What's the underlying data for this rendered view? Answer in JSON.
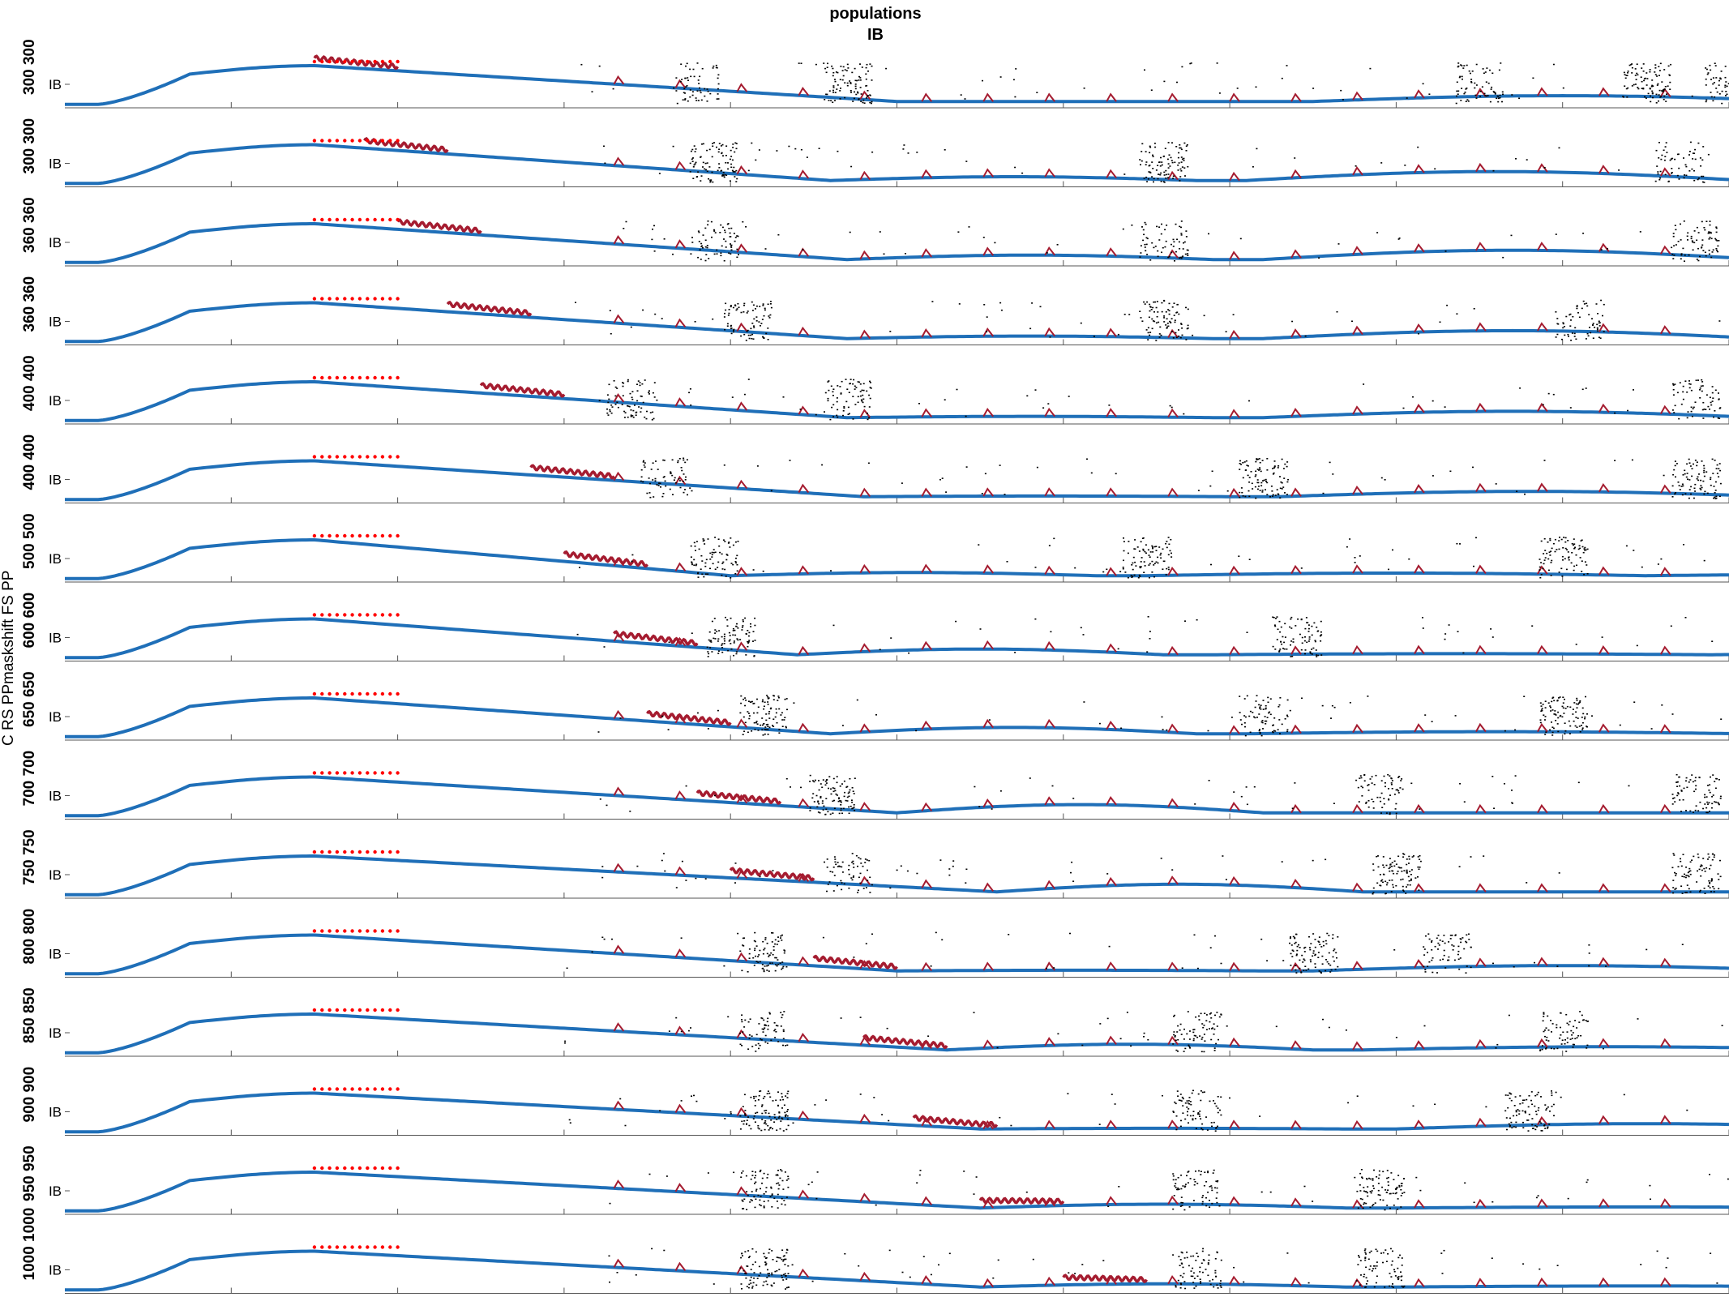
{
  "chart_data": {
    "type": "line",
    "title": "populations",
    "subtitle": "IB",
    "ylabel": "C RS PPmaskshift FS PP",
    "panel_row_label": "IB",
    "panel_tick_labels": [
      "300",
      "300",
      "360",
      "360",
      "400",
      "400",
      "500",
      "600",
      "650",
      "700",
      "750",
      "800",
      "850",
      "900",
      "950",
      "1000"
    ],
    "panels": 16,
    "x_ticks": 10,
    "colors": {
      "envelope": "#1f6fb8",
      "trace": "#a51c30",
      "stimulus_markers": "#ff0000",
      "spikes": "#000000",
      "axes": "#555555"
    },
    "stimulus_window": [
      0.15,
      0.2
    ],
    "shifted_burst_onsets": [
      0.15,
      0.18,
      0.2,
      0.23,
      0.25,
      0.28,
      0.3,
      0.33,
      0.35,
      0.38,
      0.4,
      0.45,
      0.48,
      0.51,
      0.55,
      0.6
    ],
    "envelope_waves": [
      {
        "t": 0.5,
        "a": 0.0,
        "b": 0.55
      },
      {
        "t": 0.46,
        "a": 0.3,
        "b": 0.85
      },
      {
        "t": 0.47,
        "a": 0.35,
        "b": 0.88
      },
      {
        "t": 0.47,
        "a": 0.2,
        "b": 0.75
      },
      {
        "t": 0.47,
        "a": 0.1,
        "b": 0.6
      },
      {
        "t": 0.48,
        "a": 0.05,
        "b": 0.5
      },
      {
        "t": 0.4,
        "a": 0.25,
        "b": 0.25
      },
      {
        "t": 0.44,
        "a": 0.45,
        "b": 0.1
      },
      {
        "t": 0.46,
        "a": 0.5,
        "b": 0.2
      },
      {
        "t": 0.5,
        "a": 0.65,
        "b": 0.0
      },
      {
        "t": 0.56,
        "a": 0.6,
        "b": 0.0
      },
      {
        "t": 0.5,
        "a": 0.05,
        "b": 0.5
      },
      {
        "t": 0.53,
        "a": 0.45,
        "b": 0.3
      },
      {
        "t": 0.55,
        "a": 0.05,
        "b": 0.5
      },
      {
        "t": 0.55,
        "a": 0.3,
        "b": 0.1
      },
      {
        "t": 0.55,
        "a": 0.25,
        "b": 0.1
      }
    ],
    "spike_clusters": [
      [
        0.38,
        0.47,
        0.85,
        0.95,
        1.0
      ],
      [
        0.39,
        0.66,
        0.97
      ],
      [
        0.39,
        0.66,
        0.98
      ],
      [
        0.41,
        0.66,
        0.91
      ],
      [
        0.34,
        0.47,
        0.98
      ],
      [
        0.36,
        0.72,
        0.98
      ],
      [
        0.39,
        0.65,
        0.9
      ],
      [
        0.4,
        0.74
      ],
      [
        0.42,
        0.72,
        0.9
      ],
      [
        0.46,
        0.79,
        0.98
      ],
      [
        0.47,
        0.8,
        0.98
      ],
      [
        0.42,
        0.75,
        0.83
      ],
      [
        0.42,
        0.68,
        0.9
      ],
      [
        0.42,
        0.68,
        0.88
      ],
      [
        0.42,
        0.68,
        0.79
      ],
      [
        0.42,
        0.68,
        0.79
      ]
    ]
  }
}
